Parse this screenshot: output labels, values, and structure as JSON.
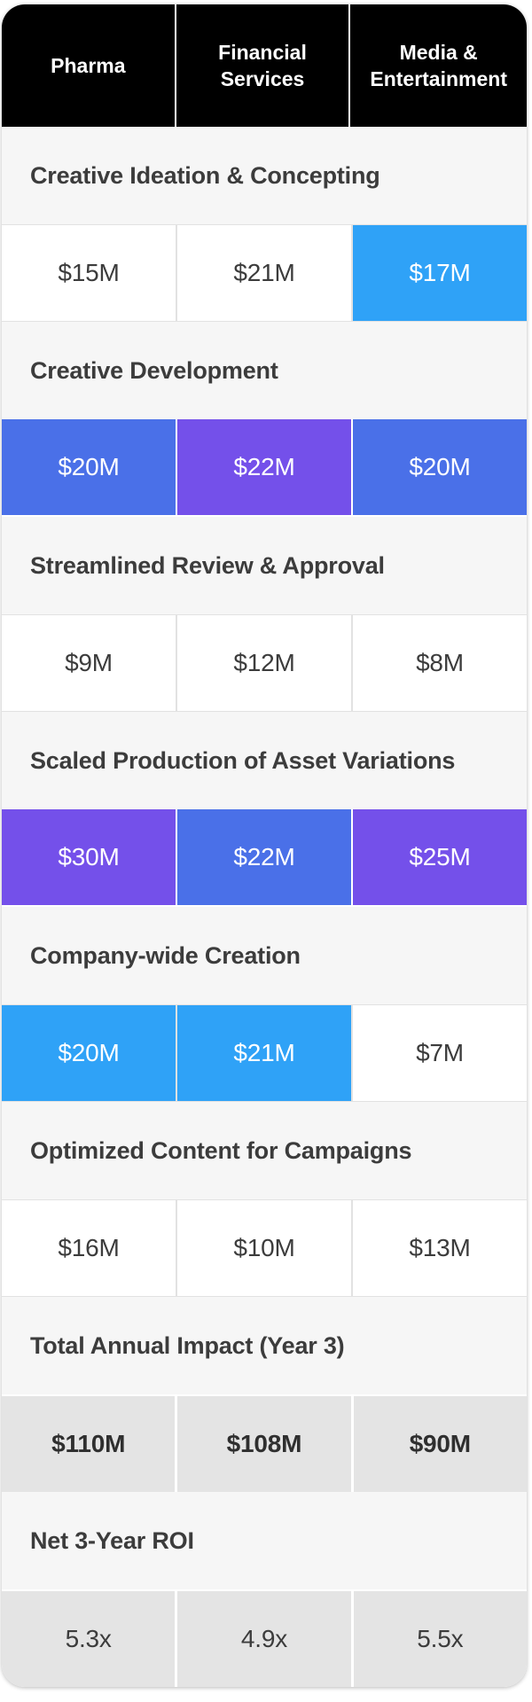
{
  "chart_data": {
    "type": "table",
    "title": "",
    "columns": [
      "Pharma",
      "Financial Services",
      "Media & Entertainment"
    ],
    "rows": [
      {
        "section": "Creative Ideation & Concepting",
        "values": [
          {
            "text": "$15M",
            "style": "plain"
          },
          {
            "text": "$21M",
            "style": "plain"
          },
          {
            "text": "$17M",
            "style": "lightblue"
          }
        ]
      },
      {
        "section": "Creative Development",
        "values": [
          {
            "text": "$20M",
            "style": "blue"
          },
          {
            "text": "$22M",
            "style": "purple"
          },
          {
            "text": "$20M",
            "style": "blue"
          }
        ]
      },
      {
        "section": "Streamlined Review & Approval",
        "values": [
          {
            "text": "$9M",
            "style": "plain"
          },
          {
            "text": "$12M",
            "style": "plain"
          },
          {
            "text": "$8M",
            "style": "plain"
          }
        ]
      },
      {
        "section": "Scaled Production of Asset Variations",
        "values": [
          {
            "text": "$30M",
            "style": "purple"
          },
          {
            "text": "$22M",
            "style": "blue"
          },
          {
            "text": "$25M",
            "style": "purple"
          }
        ]
      },
      {
        "section": "Company-wide Creation",
        "values": [
          {
            "text": "$20M",
            "style": "lightblue"
          },
          {
            "text": "$21M",
            "style": "lightblue"
          },
          {
            "text": "$7M",
            "style": "plain"
          }
        ]
      },
      {
        "section": "Optimized Content for Campaigns",
        "values": [
          {
            "text": "$16M",
            "style": "plain"
          },
          {
            "text": "$10M",
            "style": "plain"
          },
          {
            "text": "$13M",
            "style": "plain"
          }
        ]
      },
      {
        "section": "Total Annual Impact (Year 3)",
        "values": [
          {
            "text": "$110M",
            "style": "result-bold"
          },
          {
            "text": "$108M",
            "style": "result-bold"
          },
          {
            "text": "$90M",
            "style": "result-bold"
          }
        ]
      },
      {
        "section": "Net 3-Year ROI",
        "values": [
          {
            "text": "5.3x",
            "style": "result"
          },
          {
            "text": "4.9x",
            "style": "result"
          },
          {
            "text": "5.5x",
            "style": "result"
          }
        ]
      }
    ]
  },
  "colors": {
    "header_bg": "#000000",
    "header_text": "#FFFFFF",
    "section_bg": "#F6F6F6",
    "cell_border": "#E2E2E2",
    "light_blue": "#2FA2F7",
    "blue": "#4A70E8",
    "purple": "#7450EA",
    "result_gray": "#E4E4E4",
    "text_dark": "#3C3C3C",
    "value_text_light": "#FFFFFF"
  }
}
